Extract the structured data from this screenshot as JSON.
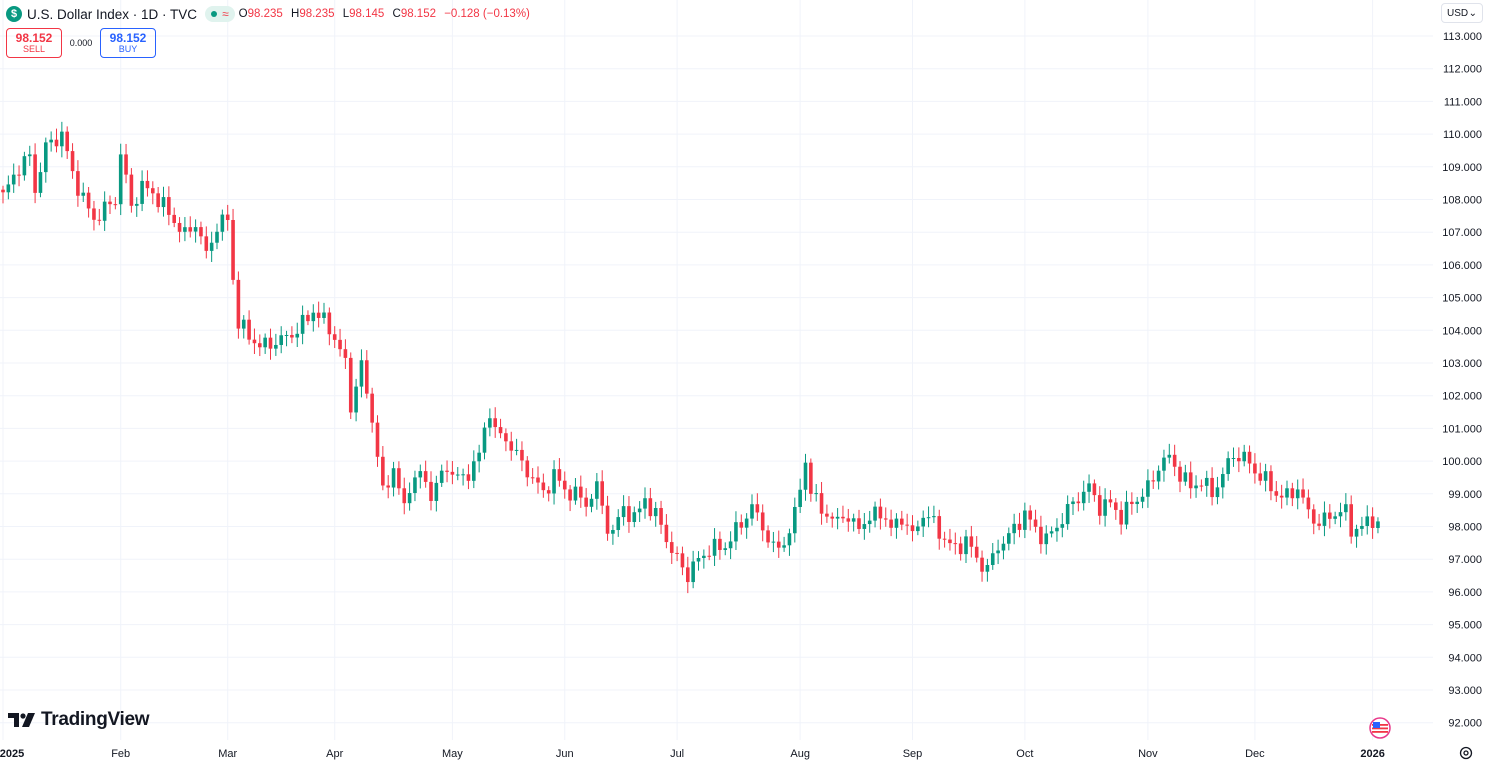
{
  "legend": {
    "symbol_icon": "$",
    "title": "U.S. Dollar Index · 1D · TVC",
    "open_label": "O",
    "open": "98.235",
    "high_label": "H",
    "high": "98.235",
    "low_label": "L",
    "low": "98.145",
    "close_label": "C",
    "close": "98.152",
    "change": "−0.128 (−0.13%)",
    "status_icon": "market-open-dot-icon",
    "delay_icon": "≈"
  },
  "trade": {
    "sell_price": "98.152",
    "sell_label": "SELL",
    "spread": "0.000",
    "buy_price": "98.152",
    "buy_label": "BUY"
  },
  "currency": {
    "value": "USD",
    "chevron": "⌄"
  },
  "branding": {
    "logo": "TradingView"
  },
  "colors": {
    "up": "#089981",
    "down": "#f23645",
    "grid": "#f0f3fa",
    "text": "#131722"
  },
  "chart_data": {
    "type": "candlestick",
    "title": "U.S. Dollar Index · 1D · TVC",
    "ylim": [
      91.7,
      113.6
    ],
    "y_ticks": [
      "113.000",
      "112.000",
      "111.000",
      "110.000",
      "109.000",
      "108.000",
      "107.000",
      "106.000",
      "105.000",
      "104.000",
      "103.000",
      "102.000",
      "101.000",
      "100.000",
      "99.000",
      "98.000",
      "97.000",
      "96.000",
      "95.000",
      "94.000",
      "93.000",
      "92.000"
    ],
    "x_ticks": [
      {
        "label": "2025",
        "bold": true,
        "i": 0
      },
      {
        "label": "Feb",
        "i": 22
      },
      {
        "label": "Mar",
        "i": 42
      },
      {
        "label": "Apr",
        "i": 62
      },
      {
        "label": "May",
        "i": 84
      },
      {
        "label": "Jun",
        "i": 105
      },
      {
        "label": "Jul",
        "i": 126
      },
      {
        "label": "Aug",
        "i": 149
      },
      {
        "label": "Sep",
        "i": 170
      },
      {
        "label": "Oct",
        "i": 191
      },
      {
        "label": "Nov",
        "i": 214
      },
      {
        "label": "Dec",
        "i": 234
      },
      {
        "label": "2026",
        "bold": true,
        "i": 256
      }
    ],
    "x_anchors": [
      [
        0,
        108.1
      ],
      [
        3,
        109.0
      ],
      [
        5,
        109.3
      ],
      [
        6,
        108.3
      ],
      [
        8,
        109.6
      ],
      [
        11,
        110.0
      ],
      [
        13,
        108.8
      ],
      [
        15,
        108.0
      ],
      [
        17,
        107.4
      ],
      [
        21,
        108.0
      ],
      [
        22,
        109.4
      ],
      [
        24,
        107.8
      ],
      [
        26,
        108.4
      ],
      [
        28,
        108.2
      ],
      [
        30,
        107.8
      ],
      [
        34,
        106.9
      ],
      [
        36,
        107.3
      ],
      [
        38,
        106.3
      ],
      [
        40,
        107.2
      ],
      [
        42,
        107.4
      ],
      [
        43,
        105.6
      ],
      [
        44,
        104.2
      ],
      [
        48,
        103.5
      ],
      [
        52,
        103.7
      ],
      [
        55,
        104.0
      ],
      [
        58,
        104.6
      ],
      [
        61,
        104.1
      ],
      [
        64,
        103.0
      ],
      [
        65,
        101.7
      ],
      [
        67,
        102.9
      ],
      [
        69,
        101.3
      ],
      [
        71,
        99.0
      ],
      [
        73,
        99.8
      ],
      [
        75,
        98.5
      ],
      [
        76,
        99.3
      ],
      [
        78,
        99.6
      ],
      [
        80,
        99.0
      ],
      [
        83,
        99.8
      ],
      [
        86,
        99.4
      ],
      [
        89,
        100.2
      ],
      [
        91,
        101.6
      ],
      [
        92,
        100.9
      ],
      [
        95,
        100.5
      ],
      [
        97,
        99.9
      ],
      [
        99,
        99.5
      ],
      [
        101,
        99.0
      ],
      [
        103,
        99.6
      ],
      [
        105,
        99.1
      ],
      [
        107,
        99.0
      ],
      [
        109,
        98.7
      ],
      [
        111,
        99.2
      ],
      [
        113,
        98.0
      ],
      [
        114,
        97.8
      ],
      [
        116,
        98.6
      ],
      [
        118,
        98.2
      ],
      [
        120,
        98.9
      ],
      [
        121,
        98.5
      ],
      [
        123,
        98.1
      ],
      [
        125,
        97.2
      ],
      [
        127,
        96.8
      ],
      [
        128,
        96.5
      ],
      [
        130,
        97.0
      ],
      [
        132,
        97.3
      ],
      [
        135,
        97.4
      ],
      [
        138,
        98.1
      ],
      [
        140,
        98.6
      ],
      [
        142,
        98.0
      ],
      [
        144,
        97.3
      ],
      [
        146,
        97.5
      ],
      [
        148,
        98.3
      ],
      [
        149,
        99.3
      ],
      [
        150,
        100.0
      ],
      [
        151,
        99.0
      ],
      [
        153,
        98.6
      ],
      [
        155,
        98.1
      ],
      [
        157,
        98.4
      ],
      [
        159,
        98.0
      ],
      [
        162,
        98.2
      ],
      [
        164,
        98.5
      ],
      [
        166,
        97.9
      ],
      [
        168,
        98.3
      ],
      [
        170,
        97.7
      ],
      [
        172,
        98.4
      ],
      [
        174,
        98.1
      ],
      [
        176,
        97.6
      ],
      [
        178,
        97.3
      ],
      [
        180,
        97.6
      ],
      [
        182,
        97.0
      ],
      [
        184,
        96.7
      ],
      [
        186,
        97.4
      ],
      [
        188,
        97.7
      ],
      [
        191,
        98.4
      ],
      [
        193,
        97.9
      ],
      [
        195,
        97.6
      ],
      [
        197,
        98.0
      ],
      [
        199,
        98.5
      ],
      [
        201,
        98.9
      ],
      [
        203,
        99.2
      ],
      [
        205,
        98.6
      ],
      [
        207,
        98.7
      ],
      [
        209,
        98.3
      ],
      [
        211,
        98.7
      ],
      [
        213,
        99.0
      ],
      [
        215,
        99.4
      ],
      [
        216,
        99.9
      ],
      [
        218,
        100.1
      ],
      [
        220,
        99.6
      ],
      [
        222,
        99.2
      ],
      [
        224,
        99.4
      ],
      [
        226,
        99.0
      ],
      [
        228,
        99.6
      ],
      [
        230,
        100.2
      ],
      [
        232,
        100.1
      ],
      [
        234,
        99.7
      ],
      [
        236,
        99.4
      ],
      [
        238,
        99.0
      ],
      [
        240,
        98.9
      ],
      [
        242,
        99.2
      ],
      [
        244,
        98.4
      ],
      [
        246,
        98.1
      ],
      [
        248,
        98.3
      ],
      [
        250,
        98.5
      ],
      [
        251,
        98.4
      ],
      [
        252,
        97.9
      ],
      [
        254,
        98.0
      ],
      [
        256,
        98.2
      ],
      [
        257,
        98.15
      ]
    ]
  }
}
